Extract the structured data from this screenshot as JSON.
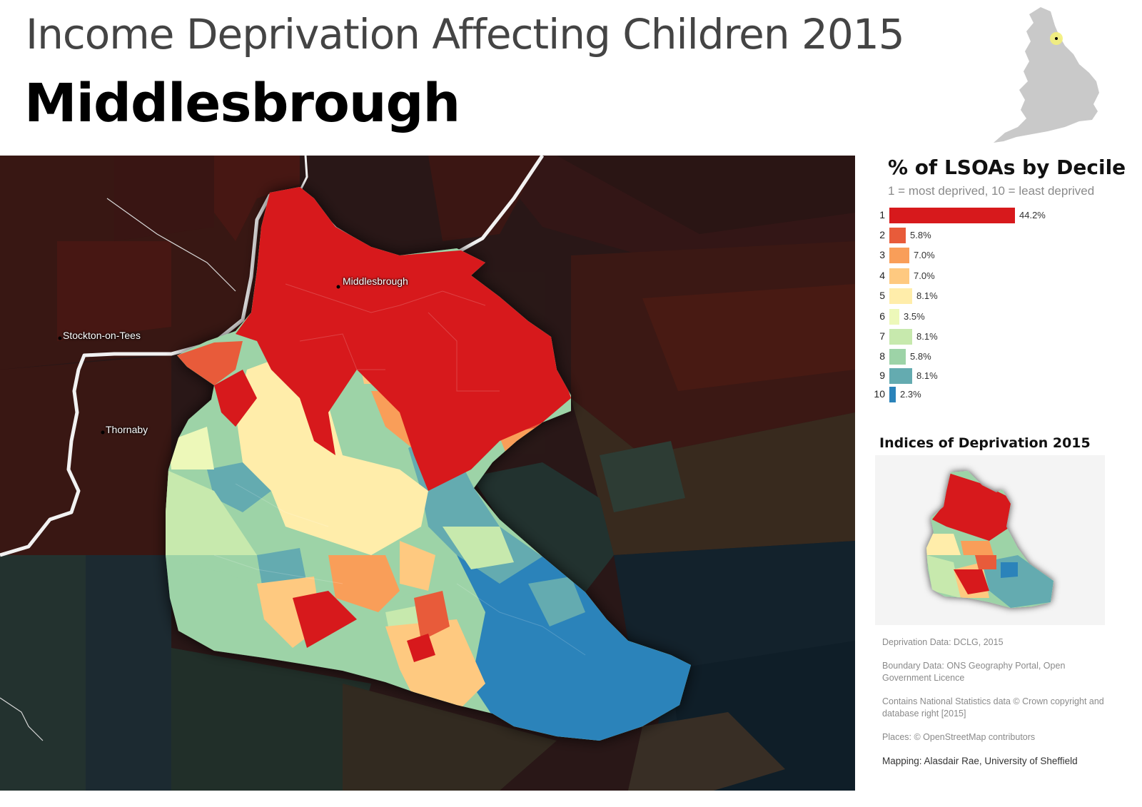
{
  "header": {
    "title": "Income Deprivation Affecting Children 2015",
    "area": "Middlesbrough"
  },
  "map": {
    "places": [
      {
        "name": "Middlesbrough"
      },
      {
        "name": "Stockton-on-Tees"
      },
      {
        "name": "Thornaby"
      }
    ]
  },
  "legend": {
    "title": "% of LSOAs by Decile",
    "subtitle": "1 = most deprived, 10 = least deprived",
    "deciles": [
      {
        "decile": "1",
        "label": "44.2%",
        "value": 44.2,
        "color": "#d7191c"
      },
      {
        "decile": "2",
        "label": "5.8%",
        "value": 5.8,
        "color": "#e85b3a"
      },
      {
        "decile": "3",
        "label": "7.0%",
        "value": 7.0,
        "color": "#f99e59"
      },
      {
        "decile": "4",
        "label": "7.0%",
        "value": 7.0,
        "color": "#fec980"
      },
      {
        "decile": "5",
        "label": "8.1%",
        "value": 8.1,
        "color": "#ffedaa"
      },
      {
        "decile": "6",
        "label": "3.5%",
        "value": 3.5,
        "color": "#edf8b9"
      },
      {
        "decile": "7",
        "label": "8.1%",
        "value": 8.1,
        "color": "#c7e9ad"
      },
      {
        "decile": "8",
        "label": "5.8%",
        "value": 5.8,
        "color": "#9dd3a7"
      },
      {
        "decile": "9",
        "label": "8.1%",
        "value": 8.1,
        "color": "#64abb0"
      },
      {
        "decile": "10",
        "label": "2.3%",
        "value": 2.3,
        "color": "#2b83ba"
      }
    ]
  },
  "inset": {
    "title": "Indices of Deprivation 2015"
  },
  "credits": {
    "data": "Deprivation Data: DCLG, 2015",
    "boundary": "Boundary Data: ONS Geography Portal, Open Government Licence",
    "copyright": "Contains National Statistics data © Crown copyright and database right [2015]",
    "places": "Places: © OpenStreetMap contributors",
    "author": "Mapping: Alasdair Rae, University of Sheffield"
  }
}
